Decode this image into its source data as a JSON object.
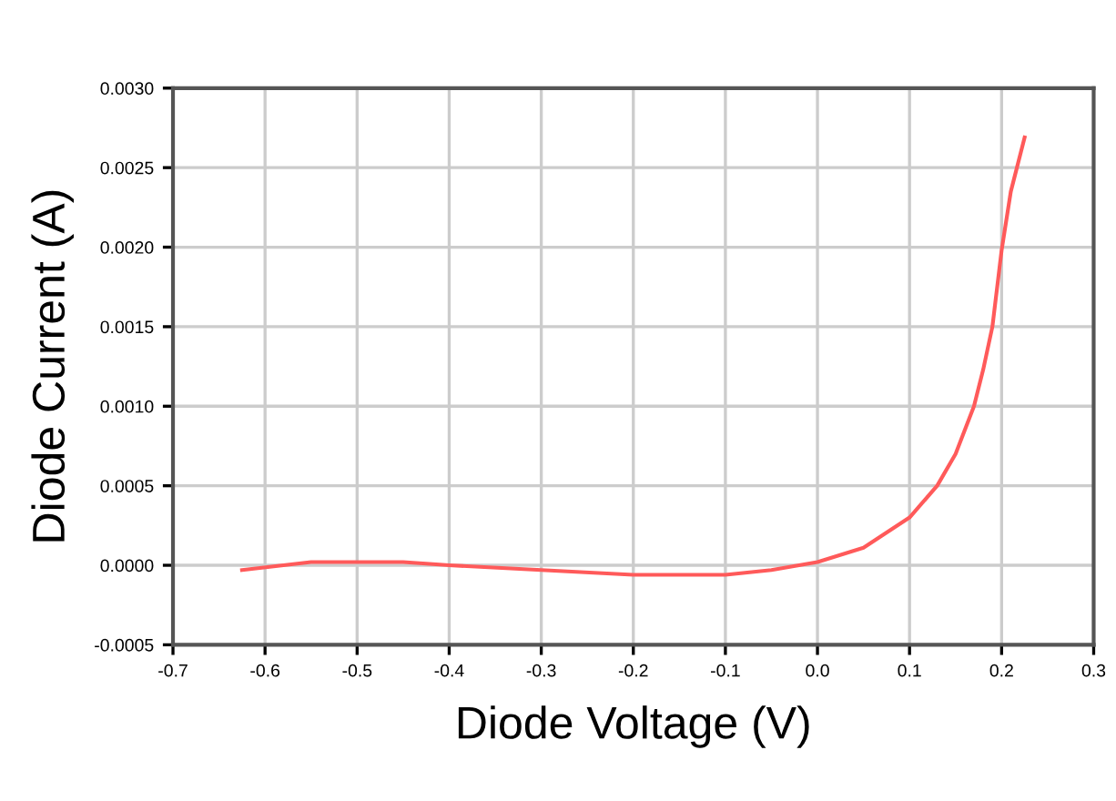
{
  "chart_data": {
    "type": "line",
    "xlabel": "Diode Voltage (V)",
    "ylabel": "Diode Current (A)",
    "series": [
      {
        "color": "#ff5a5a",
        "x": [
          -0.625,
          -0.55,
          -0.45,
          -0.4,
          -0.3,
          -0.2,
          -0.1,
          -0.05,
          0.0,
          0.05,
          0.1,
          0.13,
          0.15,
          0.17,
          0.18,
          0.19,
          0.2,
          0.21,
          0.225
        ],
        "values": [
          -3e-05,
          2e-05,
          2e-05,
          0.0,
          -3e-05,
          -6e-05,
          -6e-05,
          -3e-05,
          2e-05,
          0.00011,
          0.0003,
          0.0005,
          0.0007,
          0.001,
          0.00123,
          0.0015,
          0.00198,
          0.00235,
          0.00269
        ]
      }
    ],
    "xlim": [
      -0.7,
      0.3
    ],
    "xticks": [
      {
        "value": -0.7,
        "label": "-0.7"
      },
      {
        "value": -0.6,
        "label": "-0.6"
      },
      {
        "value": -0.5,
        "label": "-0.5"
      },
      {
        "value": -0.4,
        "label": "-0.4"
      },
      {
        "value": -0.3,
        "label": "-0.3"
      },
      {
        "value": -0.2,
        "label": "-0.2"
      },
      {
        "value": -0.1,
        "label": "-0.1"
      },
      {
        "value": 0.0,
        "label": "0.0"
      },
      {
        "value": 0.1,
        "label": "0.1"
      },
      {
        "value": 0.2,
        "label": "0.2"
      },
      {
        "value": 0.3,
        "label": "0.3"
      }
    ],
    "ylim": [
      -0.0005,
      0.003
    ],
    "yticks": [
      {
        "value": -0.0005,
        "label": "-0.0005"
      },
      {
        "value": 0.0,
        "label": "0.0000"
      },
      {
        "value": 0.0005,
        "label": "0.0005"
      },
      {
        "value": 0.001,
        "label": "0.0010"
      },
      {
        "value": 0.0015,
        "label": "0.0015"
      },
      {
        "value": 0.002,
        "label": "0.0020"
      },
      {
        "value": 0.0025,
        "label": "0.0025"
      },
      {
        "value": 0.003,
        "label": "0.0030"
      }
    ],
    "grid": true,
    "marker": "none",
    "line_style": "solid",
    "legend": false
  }
}
